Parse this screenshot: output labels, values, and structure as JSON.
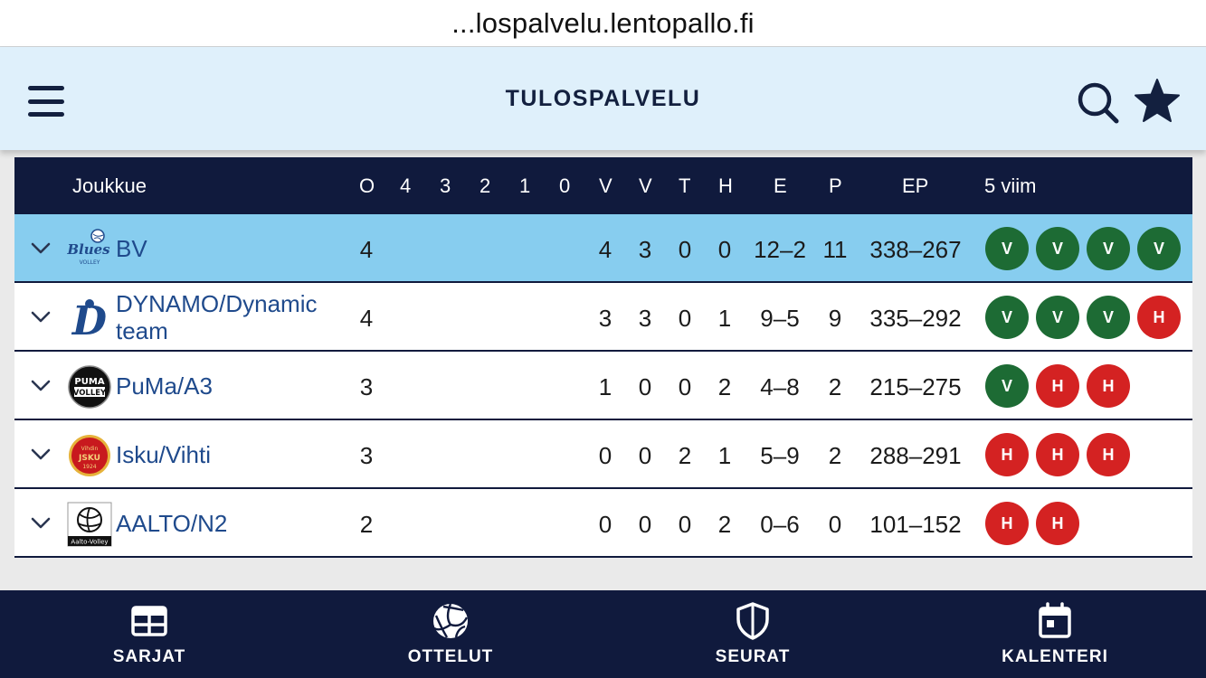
{
  "url": "...lospalvelu.lentopallo.fi",
  "app": {
    "title": "TULOSPALVELU"
  },
  "table": {
    "headers": {
      "team": "Joukkue",
      "o": "O",
      "s4": "4",
      "s3": "3",
      "s2": "2",
      "s1": "1",
      "s0": "0",
      "v1": "V",
      "v2": "V",
      "t": "T",
      "h": "H",
      "e": "E",
      "p": "P",
      "ep": "EP",
      "last5": "5 viim"
    },
    "rows": [
      {
        "team": "BV",
        "o": "4",
        "v1": "4",
        "v2": "3",
        "t": "0",
        "h": "0",
        "e": "12–2",
        "p": "11",
        "ep": "338–267",
        "last5": [
          "V",
          "V",
          "V",
          "V"
        ]
      },
      {
        "team": "DYNAMO/Dynamic team",
        "o": "4",
        "v1": "3",
        "v2": "3",
        "t": "0",
        "h": "1",
        "e": "9–5",
        "p": "9",
        "ep": "335–292",
        "last5": [
          "V",
          "V",
          "V",
          "H"
        ]
      },
      {
        "team": "PuMa/A3",
        "o": "3",
        "v1": "1",
        "v2": "0",
        "t": "0",
        "h": "2",
        "e": "4–8",
        "p": "2",
        "ep": "215–275",
        "last5": [
          "V",
          "H",
          "H"
        ]
      },
      {
        "team": "Isku/Vihti",
        "o": "3",
        "v1": "0",
        "v2": "0",
        "t": "2",
        "h": "1",
        "e": "5–9",
        "p": "2",
        "ep": "288–291",
        "last5": [
          "H",
          "H",
          "H"
        ]
      },
      {
        "team": "AALTO/N2",
        "o": "2",
        "v1": "0",
        "v2": "0",
        "t": "0",
        "h": "2",
        "e": "0–6",
        "p": "0",
        "ep": "101–152",
        "last5": [
          "H",
          "H"
        ]
      }
    ],
    "logos": {
      "bv": {
        "line1": "Blues",
        "line2": "VOLLEY"
      },
      "dynamo": {
        "letter": "D"
      },
      "puma": {
        "line1": "PUMA",
        "line2": "VOLLEY"
      },
      "isku": {
        "line1": "Vihdin",
        "line2": "JSKU",
        "line3": "1924"
      },
      "aalto": {
        "text": "Aalto-Volley"
      }
    }
  },
  "nav": {
    "items": [
      {
        "label": "SARJAT",
        "icon": "table-icon"
      },
      {
        "label": "OTTELUT",
        "icon": "volleyball-icon"
      },
      {
        "label": "SEURAT",
        "icon": "shield-icon"
      },
      {
        "label": "KALENTERI",
        "icon": "calendar-icon"
      }
    ]
  },
  "colors": {
    "navy": "#101a3d",
    "header_bg": "#dff0fb",
    "highlight_row": "#87cdef",
    "win": "#1d6b34",
    "loss": "#d42222",
    "team_link": "#1f4a8c"
  }
}
